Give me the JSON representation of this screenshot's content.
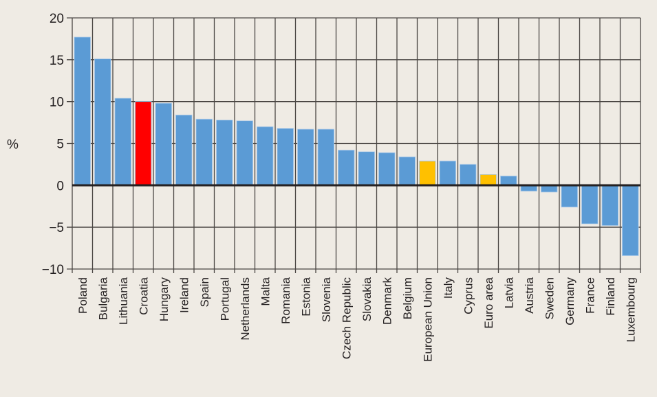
{
  "chart_data": {
    "type": "bar",
    "title": "",
    "xlabel": "",
    "ylabel": "%",
    "ylim": [
      -10,
      20
    ],
    "yticks": [
      20,
      15,
      10,
      5,
      0,
      -5,
      -10
    ],
    "ytick_labels": [
      "20",
      "15",
      "10",
      "5",
      "0",
      "−5",
      "−10"
    ],
    "grid": true,
    "categories": [
      "Poland",
      "Bulgaria",
      "Lithuania",
      "Croatia",
      "Hungary",
      "Ireland",
      "Spain",
      "Portugal",
      "Netherlands",
      "Malta",
      "Romania",
      "Estonia",
      "Slovenia",
      "Czech Republic",
      "Slovakia",
      "Denmark",
      "Belgium",
      "European Union",
      "Italy",
      "Cyprus",
      "Euro area",
      "Latvia",
      "Austria",
      "Sweden",
      "Germany",
      "France",
      "Finland",
      "Luxembourg"
    ],
    "values": [
      17.7,
      15.1,
      10.4,
      10.0,
      9.8,
      8.4,
      7.9,
      7.8,
      7.7,
      7.0,
      6.8,
      6.7,
      6.7,
      4.2,
      4.0,
      3.9,
      3.4,
      2.9,
      2.9,
      2.5,
      1.3,
      1.1,
      -0.7,
      -0.8,
      -2.6,
      -4.6,
      -4.8,
      -8.4
    ],
    "highlight": {
      "Croatia": "red",
      "European Union": "yellow",
      "Euro area": "yellow"
    },
    "colors": {
      "default": "#5b9bd5",
      "red": "#ff0000",
      "yellow": "#ffc000",
      "grid": "#4a4643",
      "zero": "#231f20",
      "background": "#efebe4"
    }
  }
}
